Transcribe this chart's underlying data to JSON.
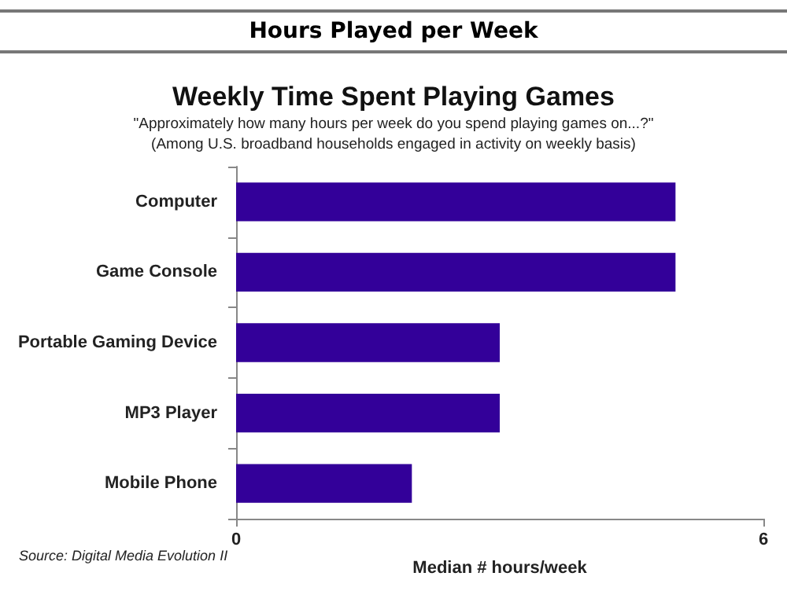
{
  "chart_data": {
    "type": "bar",
    "orientation": "horizontal",
    "title": "Hours Played per Week",
    "subtitle": "Weekly Time Spent Playing Games",
    "annotations": [
      "\"Approximately how many hours per week do you spend playing games on...?\"",
      "(Among U.S. broadband households engaged in activity on weekly basis)",
      "Source: Digital Media Evolution II"
    ],
    "categories": [
      "Computer",
      "Game Console",
      "Portable Gaming Device",
      "MP3 Player",
      "Mobile Phone"
    ],
    "values": [
      5,
      5,
      3,
      3,
      2
    ],
    "color": "#330099",
    "xlabel": "Median # hours/week",
    "xlim": [
      0,
      6
    ],
    "xticks": [
      0,
      6
    ],
    "grid": false
  }
}
